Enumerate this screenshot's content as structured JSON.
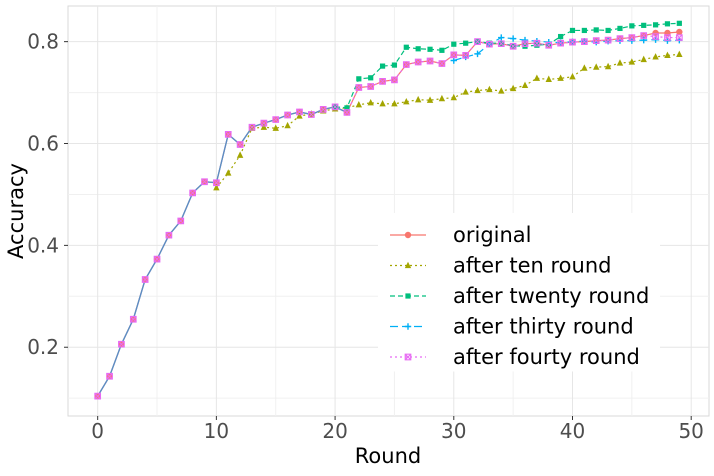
{
  "chart_data": {
    "type": "line",
    "title": "",
    "xlabel": "Round",
    "ylabel": "Accuracy",
    "xlim": [
      -2.5,
      51.5
    ],
    "ylim": [
      0.065,
      0.87
    ],
    "x_ticks": [
      0,
      10,
      20,
      30,
      40,
      50
    ],
    "y_ticks": [
      0.2,
      0.4,
      0.6,
      0.8
    ],
    "x_tick_labels": [
      "0",
      "10",
      "20",
      "30",
      "40",
      "50"
    ],
    "y_tick_labels": [
      "0.2",
      "0.4",
      "0.6",
      "0.8"
    ],
    "grid": true,
    "legend_position": "bottom-right inside",
    "x": [
      0,
      1,
      2,
      3,
      4,
      5,
      6,
      7,
      8,
      9,
      10,
      11,
      12,
      13,
      14,
      15,
      16,
      17,
      18,
      19,
      20,
      21,
      22,
      23,
      24,
      25,
      26,
      27,
      28,
      29,
      30,
      31,
      32,
      33,
      34,
      35,
      36,
      37,
      38,
      39,
      40,
      41,
      42,
      43,
      44,
      45,
      46,
      47,
      48,
      49
    ],
    "series": [
      {
        "name": "original",
        "color": "#F8766D",
        "line": "solid",
        "marker": "circle",
        "x": [
          0,
          1,
          2,
          3,
          4,
          5,
          6,
          7,
          8,
          9,
          10,
          11,
          12,
          13,
          14,
          15,
          16,
          17,
          18,
          19,
          20,
          21,
          22,
          23,
          24,
          25,
          26,
          27,
          28,
          29,
          30,
          31,
          32,
          33,
          34,
          35,
          36,
          37,
          38,
          39,
          40,
          41,
          42,
          43,
          44,
          45,
          46,
          47,
          48,
          49
        ],
        "values": [
          0.104,
          0.143,
          0.206,
          0.255,
          0.333,
          0.373,
          0.42,
          0.448,
          0.503,
          0.525,
          0.523,
          0.618,
          0.598,
          0.632,
          0.64,
          0.647,
          0.656,
          0.662,
          0.657,
          0.667,
          0.672,
          0.661,
          0.71,
          0.712,
          0.722,
          0.725,
          0.755,
          0.76,
          0.762,
          0.757,
          0.774,
          0.773,
          0.8,
          0.795,
          0.796,
          0.791,
          0.796,
          0.797,
          0.793,
          0.797,
          0.799,
          0.8,
          0.802,
          0.803,
          0.806,
          0.808,
          0.812,
          0.817,
          0.817,
          0.819
        ]
      },
      {
        "name": "after ten round",
        "color": "#A3A500",
        "line": "dotted",
        "marker": "triangle",
        "x": [
          10,
          11,
          12,
          13,
          14,
          15,
          16,
          17,
          18,
          19,
          20,
          21,
          22,
          23,
          24,
          25,
          26,
          27,
          28,
          29,
          30,
          31,
          32,
          33,
          34,
          35,
          36,
          37,
          38,
          39,
          40,
          41,
          42,
          43,
          44,
          45,
          46,
          47,
          48,
          49
        ],
        "values": [
          0.513,
          0.542,
          0.577,
          0.63,
          0.632,
          0.63,
          0.635,
          0.654,
          0.658,
          0.664,
          0.668,
          0.67,
          0.676,
          0.68,
          0.678,
          0.678,
          0.682,
          0.686,
          0.685,
          0.688,
          0.69,
          0.701,
          0.704,
          0.706,
          0.703,
          0.708,
          0.714,
          0.728,
          0.726,
          0.728,
          0.731,
          0.748,
          0.75,
          0.751,
          0.758,
          0.76,
          0.765,
          0.77,
          0.773,
          0.775
        ]
      },
      {
        "name": "after twenty round",
        "color": "#00BF7D",
        "line": "dashed",
        "marker": "square",
        "x": [
          20,
          21,
          22,
          23,
          24,
          25,
          26,
          27,
          28,
          29,
          30,
          31,
          32,
          33,
          34,
          35,
          36,
          37,
          38,
          39,
          40,
          41,
          42,
          43,
          44,
          45,
          46,
          47,
          48,
          49
        ],
        "values": [
          0.672,
          0.67,
          0.727,
          0.729,
          0.752,
          0.754,
          0.789,
          0.786,
          0.785,
          0.783,
          0.795,
          0.797,
          0.8,
          0.797,
          0.797,
          0.792,
          0.791,
          0.793,
          0.795,
          0.81,
          0.822,
          0.822,
          0.823,
          0.822,
          0.826,
          0.831,
          0.832,
          0.833,
          0.835,
          0.836
        ]
      },
      {
        "name": "after thirty round",
        "color": "#00B0F6",
        "line": "longdash",
        "marker": "plus",
        "x": [
          30,
          31,
          32,
          33,
          34,
          35,
          36,
          37,
          38,
          39,
          40,
          41,
          42,
          43,
          44,
          45,
          46,
          47,
          48,
          49
        ],
        "values": [
          0.763,
          0.77,
          0.776,
          0.795,
          0.808,
          0.806,
          0.803,
          0.801,
          0.799,
          0.798,
          0.8,
          0.801,
          0.799,
          0.801,
          0.802,
          0.802,
          0.803,
          0.804,
          0.802,
          0.803
        ]
      },
      {
        "name": "after fourty round",
        "color": "#E76BF3",
        "line": "dotted",
        "marker": "square-cross",
        "x": [
          0,
          1,
          2,
          3,
          4,
          5,
          6,
          7,
          8,
          9,
          10,
          11,
          12,
          13,
          14,
          15,
          16,
          17,
          18,
          19,
          20,
          21,
          22,
          23,
          24,
          25,
          26,
          27,
          28,
          29,
          30,
          31,
          32,
          33,
          34,
          35,
          36,
          37,
          38,
          39,
          40,
          41,
          42,
          43,
          44,
          45,
          46,
          47,
          48,
          49
        ],
        "values": [
          0.104,
          0.143,
          0.206,
          0.255,
          0.333,
          0.373,
          0.42,
          0.448,
          0.503,
          0.525,
          0.523,
          0.618,
          0.598,
          0.632,
          0.64,
          0.647,
          0.656,
          0.662,
          0.657,
          0.667,
          0.672,
          0.661,
          0.71,
          0.712,
          0.722,
          0.725,
          0.755,
          0.76,
          0.762,
          0.757,
          0.774,
          0.773,
          0.8,
          0.795,
          0.796,
          0.791,
          0.796,
          0.797,
          0.793,
          0.797,
          0.799,
          0.8,
          0.802,
          0.803,
          0.806,
          0.808,
          0.812,
          0.81,
          0.808,
          0.808
        ]
      }
    ],
    "base_series": {
      "color": "#5B8FC3",
      "line": "solid",
      "x": [
        0,
        1,
        2,
        3,
        4,
        5,
        6,
        7,
        8,
        9,
        10,
        11,
        12,
        13,
        14,
        15,
        16,
        17,
        18,
        19,
        20,
        21
      ],
      "values": [
        0.104,
        0.143,
        0.206,
        0.255,
        0.333,
        0.373,
        0.42,
        0.448,
        0.503,
        0.525,
        0.523,
        0.618,
        0.598,
        0.632,
        0.64,
        0.647,
        0.656,
        0.662,
        0.657,
        0.667,
        0.672,
        0.661
      ]
    }
  }
}
